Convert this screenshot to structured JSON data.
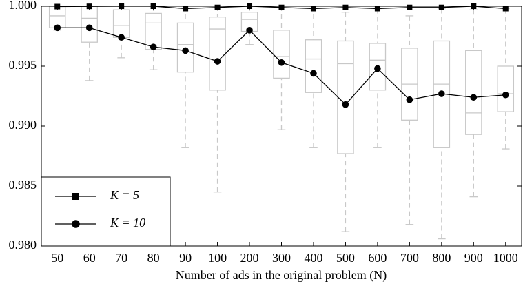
{
  "chart_data": {
    "type": "box",
    "xlabel": "Number of ads in the original problem (N)",
    "categories": [
      "50",
      "60",
      "70",
      "80",
      "90",
      "100",
      "200",
      "300",
      "400",
      "500",
      "600",
      "700",
      "800",
      "900",
      "1000"
    ],
    "boxes": [
      {
        "low": 0.998,
        "q1": 0.9982,
        "median": 0.9992,
        "q3": 1.0,
        "high": 1.0
      },
      {
        "low": 0.9938,
        "q1": 0.997,
        "median": 0.999,
        "q3": 1.0,
        "high": 1.0
      },
      {
        "low": 0.9957,
        "q1": 0.9974,
        "median": 0.9984,
        "q3": 0.9997,
        "high": 1.0
      },
      {
        "low": 0.9947,
        "q1": 0.9964,
        "median": 0.9986,
        "q3": 0.9994,
        "high": 1.0
      },
      {
        "low": 0.9882,
        "q1": 0.9945,
        "median": 0.9968,
        "q3": 0.9986,
        "high": 1.0
      },
      {
        "low": 0.9845,
        "q1": 0.993,
        "median": 0.9981,
        "q3": 0.9991,
        "high": 1.0
      },
      {
        "low": 0.9968,
        "q1": 0.9979,
        "median": 0.9989,
        "q3": 0.9995,
        "high": 1.0
      },
      {
        "low": 0.9897,
        "q1": 0.994,
        "median": 0.9958,
        "q3": 0.998,
        "high": 1.0
      },
      {
        "low": 0.9882,
        "q1": 0.9928,
        "median": 0.9956,
        "q3": 0.9972,
        "high": 1.0
      },
      {
        "low": 0.9812,
        "q1": 0.9877,
        "median": 0.9952,
        "q3": 0.9971,
        "high": 0.9995
      },
      {
        "low": 0.9882,
        "q1": 0.993,
        "median": 0.9955,
        "q3": 0.9969,
        "high": 0.9998
      },
      {
        "low": 0.9818,
        "q1": 0.9905,
        "median": 0.9935,
        "q3": 0.9965,
        "high": 0.9992
      },
      {
        "low": 0.9806,
        "q1": 0.9882,
        "median": 0.9935,
        "q3": 0.9971,
        "high": 0.9998
      },
      {
        "low": 0.9841,
        "q1": 0.9893,
        "median": 0.9911,
        "q3": 0.9963,
        "high": 0.9997
      },
      {
        "low": 0.9881,
        "q1": 0.9912,
        "median": 0.9927,
        "q3": 0.995,
        "high": 0.9998
      }
    ],
    "box_color": "#c8c8c8",
    "series": [
      {
        "name": "K = 5",
        "color": "#000000",
        "marker": "square",
        "values": [
          0.99997,
          0.99999,
          1.0,
          1.0,
          0.9998,
          0.9999,
          1.0,
          0.9999,
          0.9998,
          0.9999,
          0.9998,
          0.9999,
          0.9999,
          1.0,
          0.9998
        ]
      },
      {
        "name": "K = 10",
        "color": "#000000",
        "marker": "circle",
        "values": [
          0.9982,
          0.9982,
          0.9974,
          0.9966,
          0.9963,
          0.9954,
          0.998,
          0.9953,
          0.9944,
          0.9918,
          0.9948,
          0.9922,
          0.9927,
          0.9924,
          0.9926
        ]
      }
    ],
    "ylim": [
      0.98,
      1.0
    ],
    "yticks": [
      {
        "value": 0.98,
        "label": "0.980"
      },
      {
        "value": 0.985,
        "label": "0.985"
      },
      {
        "value": 0.99,
        "label": "0.990"
      },
      {
        "value": 0.995,
        "label": "0.995"
      },
      {
        "value": 1.0,
        "label": "1.000"
      }
    ],
    "legend": "lower left"
  }
}
